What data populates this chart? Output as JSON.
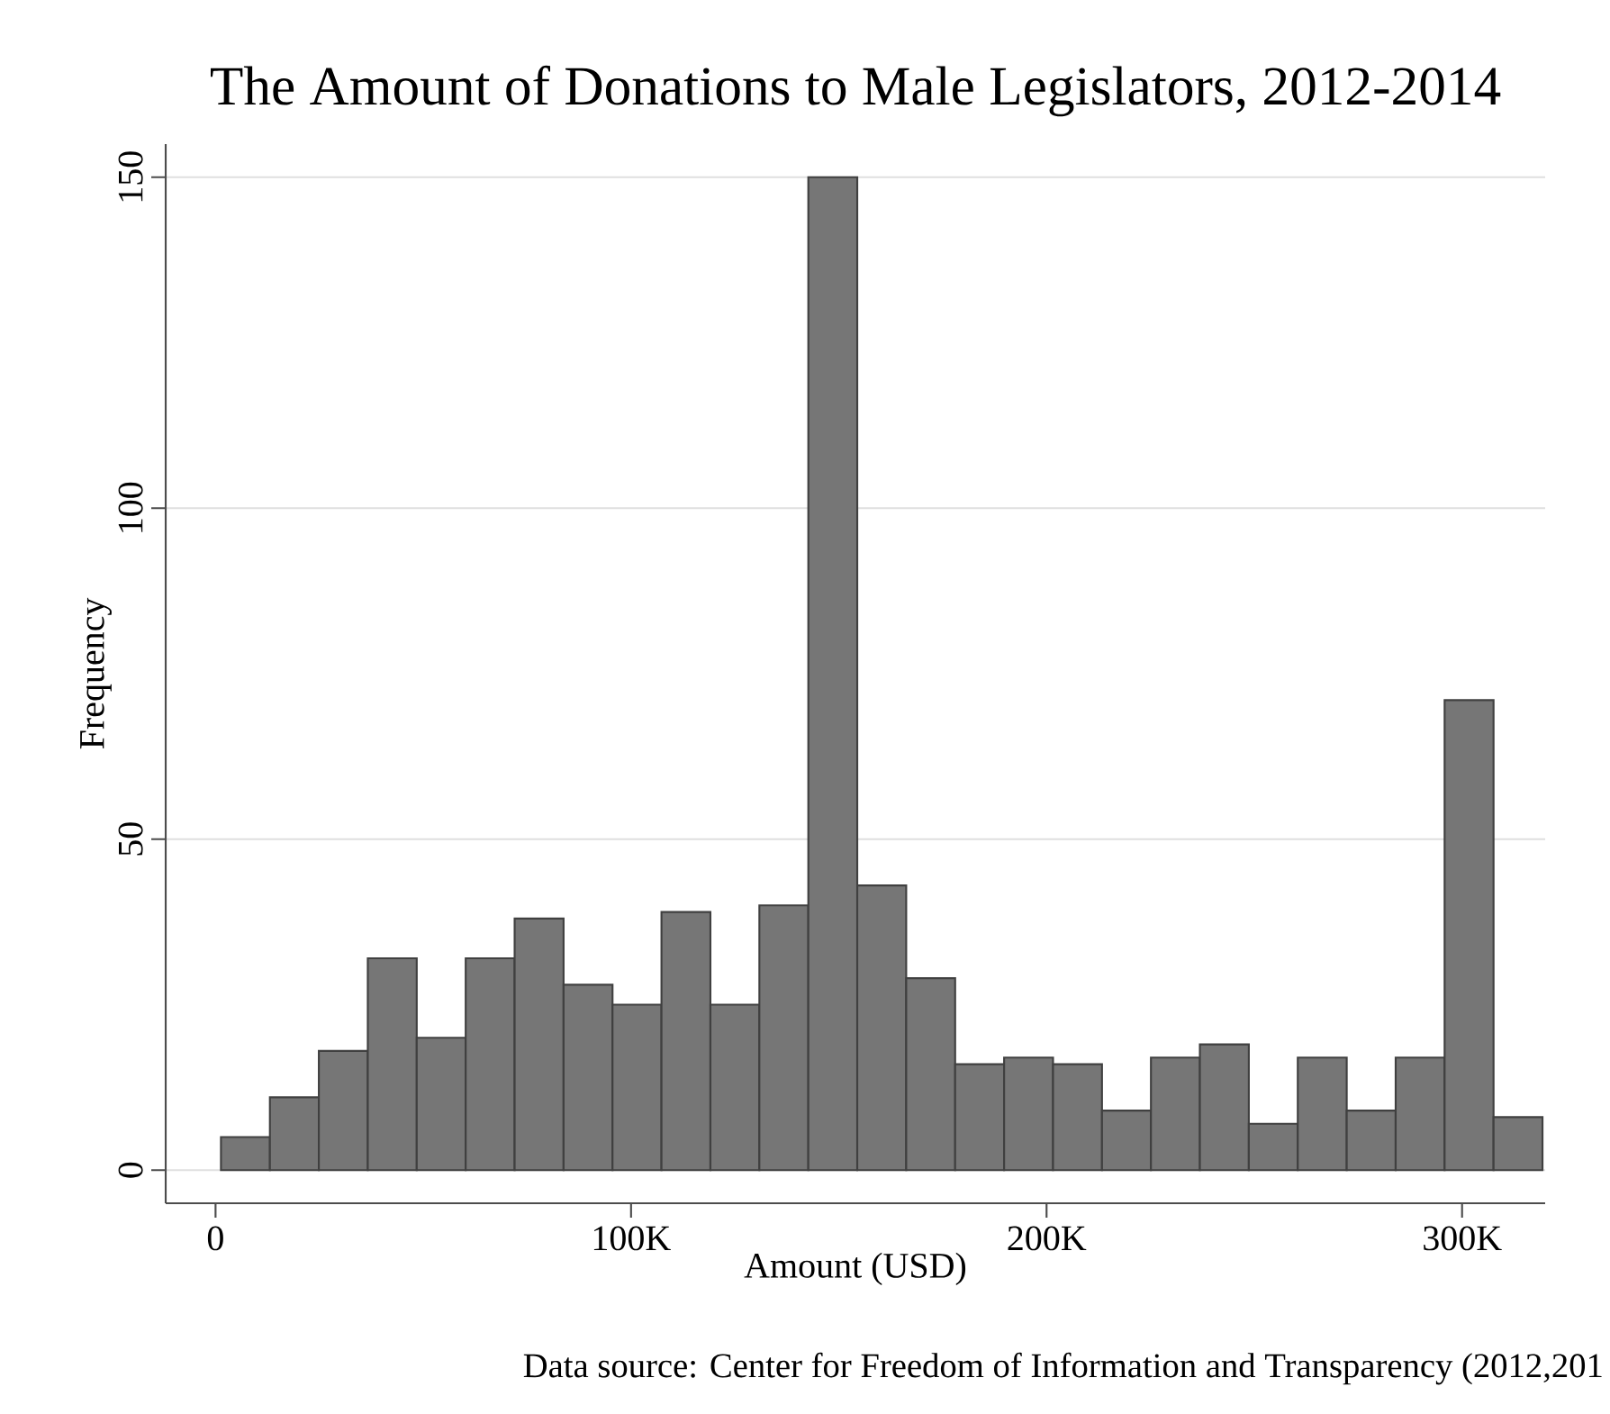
{
  "chart_data": {
    "type": "histogram",
    "title": "The Amount of Donations to Male Legislators, 2012-2014",
    "xlabel": "Amount (USD)",
    "ylabel": "Frequency",
    "annotations": [
      "Data source: Center for Freedom of Information and Transparency (2012,201"
    ],
    "bins": [
      1300,
      13080,
      24860,
      36640,
      48420,
      60200,
      71980,
      83760,
      95540,
      107320,
      119100,
      130880,
      142660,
      154440,
      166220,
      178000,
      189780,
      201560,
      213340,
      225120,
      236900,
      248680,
      260460,
      272240,
      284020,
      295800,
      307580,
      319360
    ],
    "values": [
      5,
      11,
      18,
      32,
      20,
      32,
      38,
      28,
      25,
      39,
      25,
      40,
      150,
      43,
      29,
      16,
      17,
      16,
      9,
      17,
      19,
      7,
      17,
      9,
      17,
      71,
      8
    ],
    "color": "#767676",
    "xlim": [
      -12000,
      320000
    ],
    "ylim": [
      -5,
      155
    ],
    "xticks": [
      {
        "value": 0,
        "label": "0"
      },
      {
        "value": 100000,
        "label": "100K"
      },
      {
        "value": 200000,
        "label": "200K"
      },
      {
        "value": 300000,
        "label": "300K"
      }
    ],
    "yticks": [
      0,
      50,
      100,
      150
    ],
    "grid": "y"
  }
}
